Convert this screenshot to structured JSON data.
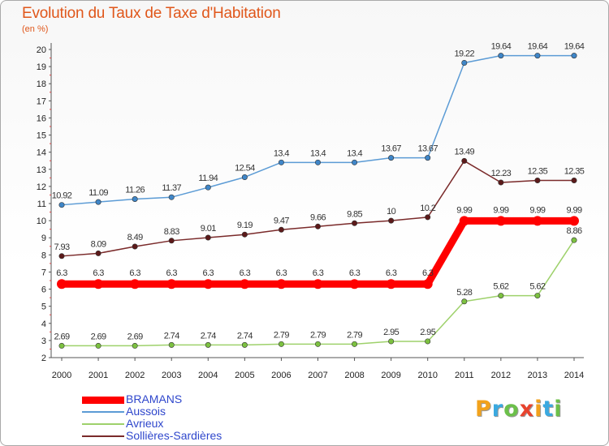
{
  "header": {
    "title": "Evolution du Taux de Taxe d'Habitation",
    "unit": "(en %)"
  },
  "logo": {
    "letters": [
      "P",
      "r",
      "o",
      "x",
      "i",
      "t",
      "i"
    ],
    "colors": [
      "#f2a21c",
      "#3aa9e0",
      "#6cc04a",
      "#e8432e",
      "#f2a21c",
      "#3aa9e0",
      "#6cc04a"
    ]
  },
  "chart_data": {
    "type": "line",
    "title": "Evolution du Taux de Taxe d'Habitation",
    "ylabel": "(en %)",
    "categories": [
      "2000",
      "2001",
      "2002",
      "2003",
      "2004",
      "2005",
      "2006",
      "2007",
      "2008",
      "2009",
      "2010",
      "2011",
      "2012",
      "2013",
      "2014"
    ],
    "y_ticks": [
      "2",
      "3",
      "4",
      "5",
      "6",
      "7",
      "8",
      "9",
      "10",
      "11",
      "12",
      "13",
      "14",
      "15",
      "16",
      "17",
      "18",
      "19",
      "20"
    ],
    "ylim": [
      2,
      20
    ],
    "grid": false,
    "legend_position": "bottom-left",
    "series": [
      {
        "name": "BRAMANS",
        "color": "#ff0000",
        "bold": true,
        "values": [
          6.3,
          6.3,
          6.3,
          6.3,
          6.3,
          6.3,
          6.3,
          6.3,
          6.3,
          6.3,
          6.3,
          9.99,
          9.99,
          9.99,
          9.99
        ],
        "labels": [
          "6.3",
          "6.3",
          "6.3",
          "6.3",
          "6.3",
          "6.3",
          "6.3",
          "6.3",
          "6.3",
          "6.3",
          "6.3",
          "9.99",
          "9.99",
          "9.99",
          "9.99"
        ]
      },
      {
        "name": "Aussois",
        "color": "#5b9bd5",
        "point_color": "#3f86c8",
        "values": [
          10.92,
          11.09,
          11.26,
          11.37,
          11.94,
          12.54,
          13.4,
          13.4,
          13.4,
          13.67,
          13.67,
          19.22,
          19.64,
          19.64,
          19.64
        ],
        "labels": [
          "10.92",
          "11.09",
          "11.26",
          "11.37",
          "11.94",
          "12.54",
          "13.4",
          "13.4",
          "13.4",
          "13.67",
          "13.67",
          "19.22",
          "19.64",
          "19.64",
          "19.64"
        ]
      },
      {
        "name": "Avrieux",
        "color": "#9ed16b",
        "point_color": "#7cc140",
        "values": [
          2.69,
          2.69,
          2.69,
          2.74,
          2.74,
          2.74,
          2.79,
          2.79,
          2.79,
          2.95,
          2.95,
          5.28,
          5.62,
          5.62,
          8.86
        ],
        "labels": [
          "2.69",
          "2.69",
          "2.69",
          "2.74",
          "2.74",
          "2.74",
          "2.79",
          "2.79",
          "2.79",
          "2.95",
          "2.95",
          "5.28",
          "5.62",
          "5.62",
          "8.86"
        ]
      },
      {
        "name": "Sollières-Sardières",
        "color": "#7a2a2a",
        "point_color": "#5c1a1a",
        "values": [
          7.93,
          8.09,
          8.49,
          8.83,
          9.01,
          9.19,
          9.47,
          9.66,
          9.85,
          10,
          10.2,
          13.49,
          12.23,
          12.35,
          12.35
        ],
        "labels": [
          "7.93",
          "8.09",
          "8.49",
          "8.83",
          "9.01",
          "9.19",
          "9.47",
          "9.66",
          "9.85",
          "10",
          "10.2",
          "13.49",
          "12.23",
          "12.35",
          "12.35"
        ]
      }
    ]
  }
}
